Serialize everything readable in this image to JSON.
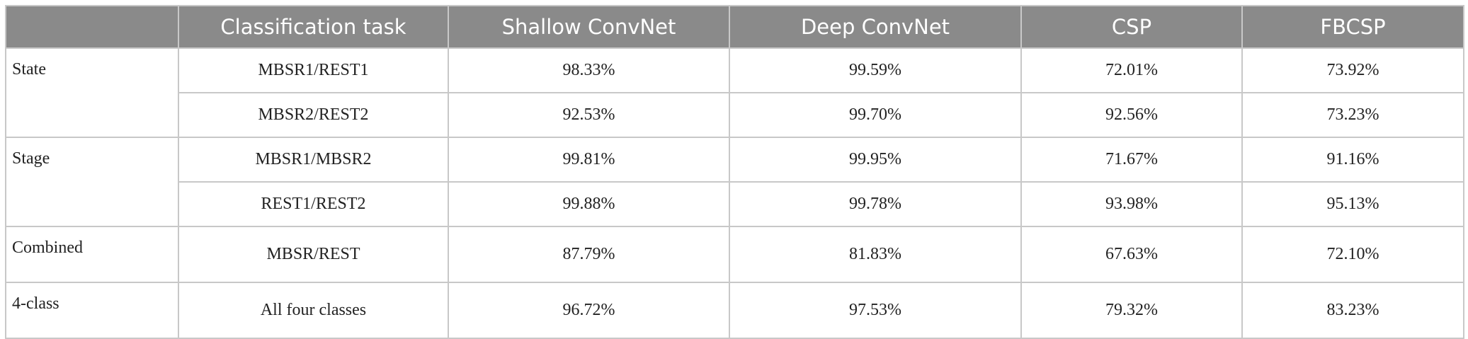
{
  "table": {
    "header": [
      "",
      "Classification task",
      "Shallow ConvNet",
      "Deep ConvNet",
      "CSP",
      "FBCSP"
    ],
    "groups": [
      {
        "label": "State",
        "rows": [
          [
            "MBSR1/REST1",
            "98.33%",
            "99.59%",
            "72.01%",
            "73.92%"
          ],
          [
            "MBSR2/REST2",
            "92.53%",
            "99.70%",
            "92.56%",
            "73.23%"
          ]
        ]
      },
      {
        "label": "Stage",
        "rows": [
          [
            "MBSR1/MBSR2",
            "99.81%",
            "99.95%",
            "71.67%",
            "91.16%"
          ],
          [
            "REST1/REST2",
            "99.88%",
            "99.78%",
            "93.98%",
            "95.13%"
          ]
        ]
      },
      {
        "label": "Combined",
        "rows": [
          [
            "MBSR/REST",
            "87.79%",
            "81.83%",
            "67.63%",
            "72.10%"
          ]
        ]
      },
      {
        "label": "4-class",
        "rows": [
          [
            "All four classes",
            "96.72%",
            "97.53%",
            "79.32%",
            "83.23%"
          ]
        ]
      }
    ]
  }
}
